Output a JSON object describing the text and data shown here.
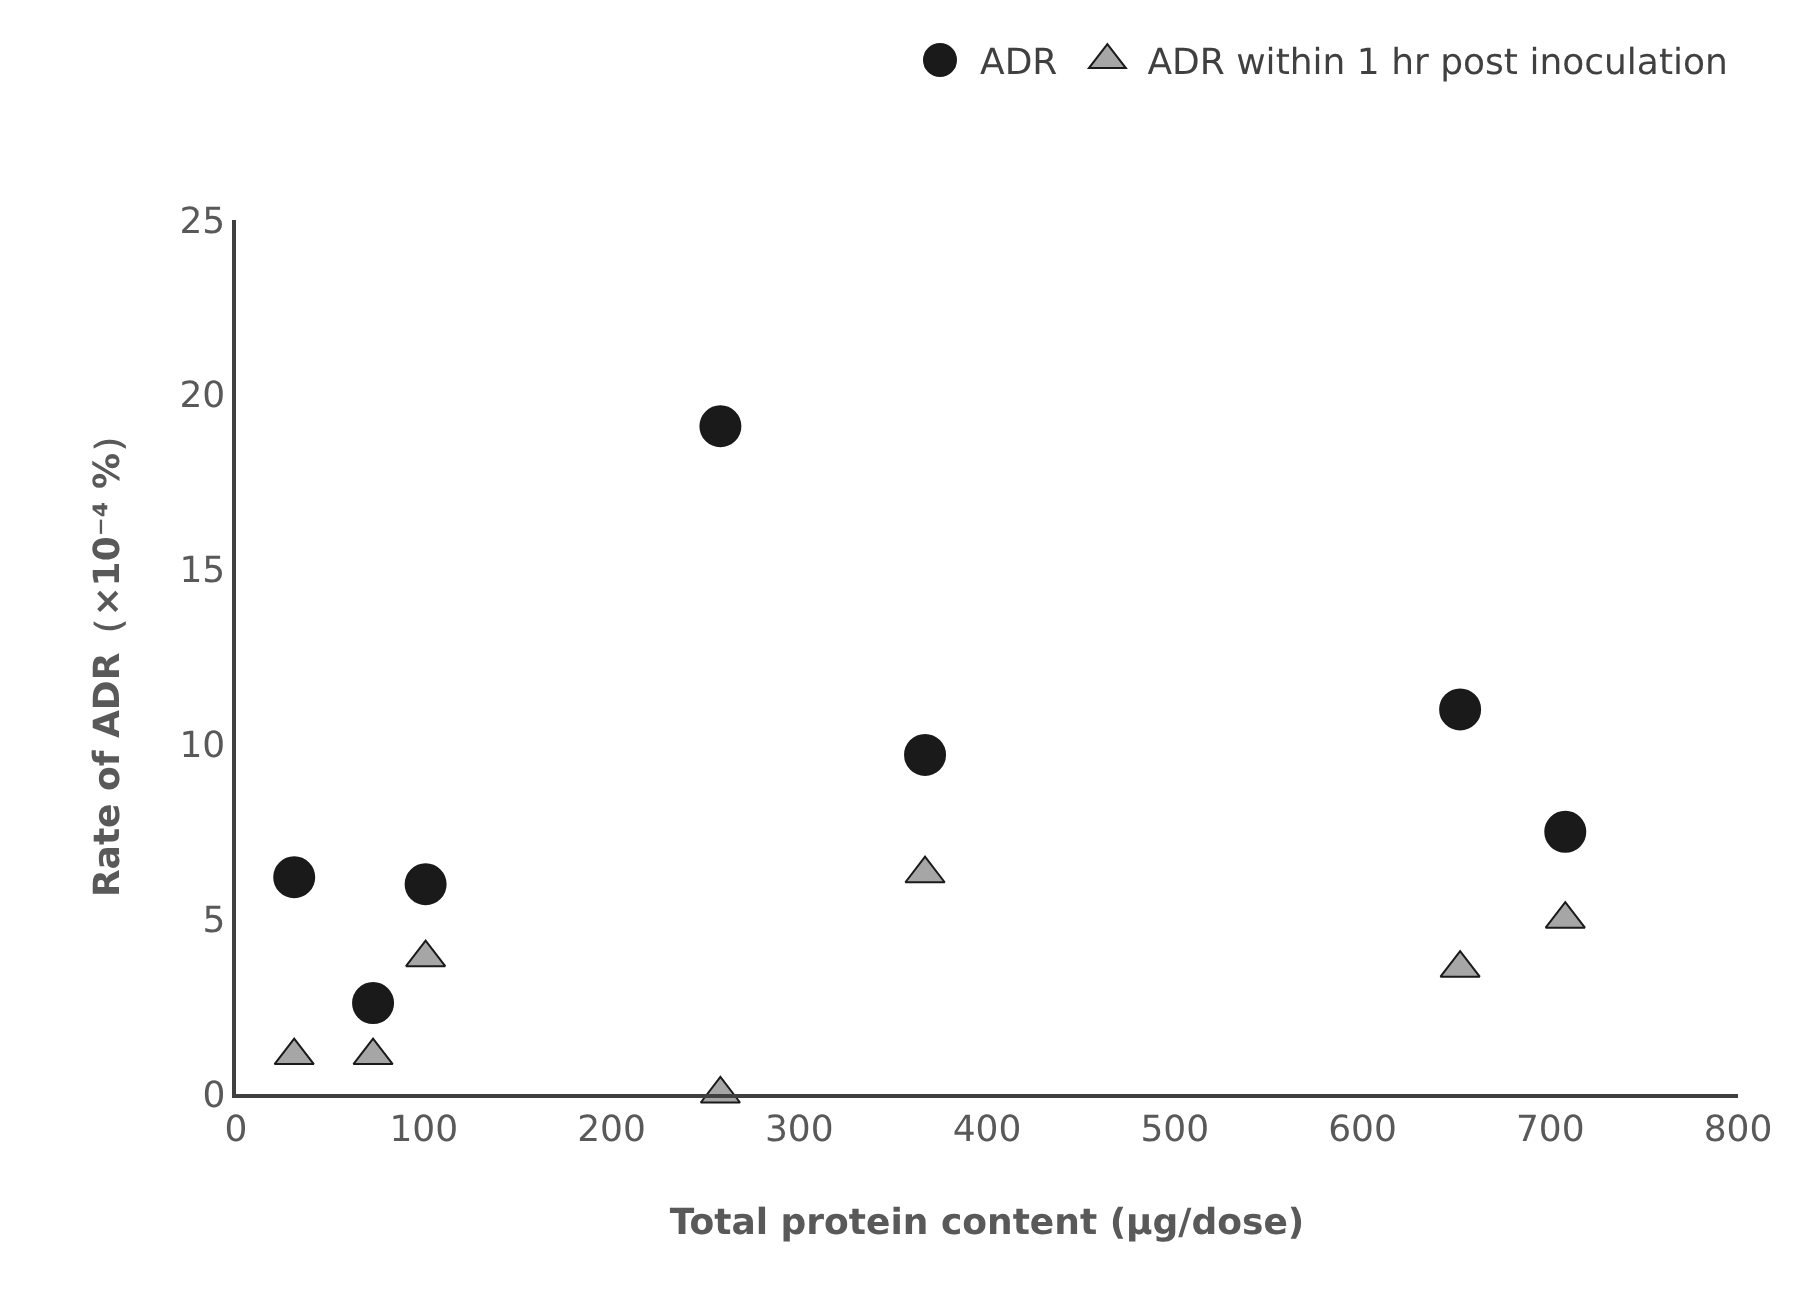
{
  "chart_data": {
    "type": "scatter",
    "xlabel": "Total protein content (μg/dose)",
    "ylabel": "Rate of ADR（×10⁻⁴ %）",
    "xlim": [
      0,
      800
    ],
    "xticks": [
      0,
      100,
      200,
      300,
      400,
      500,
      600,
      700,
      800
    ],
    "ylim": [
      0,
      25
    ],
    "yticks": [
      0,
      5,
      10,
      15,
      20,
      25
    ],
    "grid": false,
    "legend": "top right",
    "series": [
      {
        "name": "ADR",
        "color": "#1a1a1a",
        "marker": "circle",
        "x": [
          31,
          73,
          101,
          258,
          367,
          652,
          708
        ],
        "values": [
          6.2,
          2.6,
          6.0,
          19.1,
          9.7,
          11.0,
          7.5
        ]
      },
      {
        "name": "ADR within 1 hr post inoculation",
        "color": "#a6a6a6",
        "marker": "triangle",
        "x": [
          31,
          73,
          101,
          258,
          367,
          652,
          708
        ],
        "values": [
          1.1,
          1.1,
          3.9,
          0,
          6.3,
          3.6,
          5.0
        ]
      }
    ]
  }
}
